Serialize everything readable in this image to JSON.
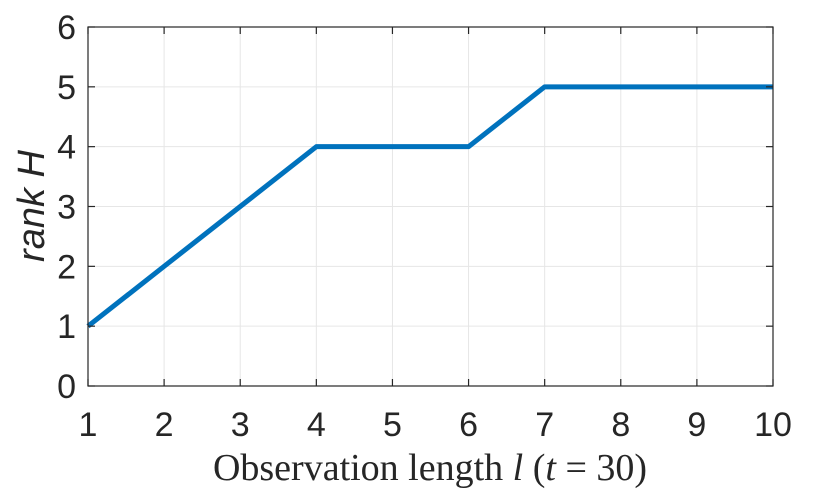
{
  "chart_data": {
    "type": "line",
    "x": [
      1,
      2,
      3,
      4,
      5,
      6,
      7,
      8,
      9,
      10
    ],
    "series": [
      {
        "values": [
          1,
          2,
          3,
          4,
          4,
          4,
          5,
          5,
          5,
          5
        ],
        "color": "#0072bd"
      }
    ],
    "xlim": [
      1,
      10
    ],
    "ylim": [
      0,
      6
    ],
    "xticks": [
      "1",
      "2",
      "3",
      "4",
      "5",
      "6",
      "7",
      "8",
      "9",
      "10"
    ],
    "yticks": [
      "0",
      "1",
      "2",
      "3",
      "4",
      "5",
      "6"
    ],
    "ylabel": "rank H",
    "xlabel": {
      "prefix": "Observation length ",
      "var": "l",
      "paren_open": " (",
      "t_var": "t",
      "eq": " = 30)"
    },
    "grid": true,
    "legend": "none"
  }
}
